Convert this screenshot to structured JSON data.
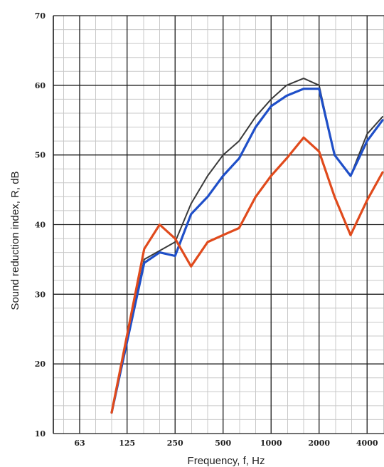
{
  "chart_data": {
    "type": "line",
    "xlabel": "Frequency, f, Hz",
    "ylabel": "Sound reduction index, R, dB",
    "x_scale": "log",
    "ylim": [
      10,
      70
    ],
    "y_ticks": [
      10,
      20,
      30,
      40,
      50,
      60,
      70
    ],
    "x_ticks": [
      "63",
      "125",
      "250",
      "500",
      "1000",
      "2000",
      "4000"
    ],
    "x_tick_values": [
      63,
      125,
      250,
      500,
      1000,
      2000,
      4000
    ],
    "grid": true,
    "legend": "none",
    "series": [
      {
        "color": "#3a3a3a",
        "x": [
          100,
          160,
          250,
          315,
          400,
          500,
          630,
          800,
          1000,
          1250,
          1600,
          2000,
          2500,
          3150,
          4000,
          5000
        ],
        "y": [
          13,
          35,
          37.5,
          43,
          47,
          50,
          52,
          55.5,
          58,
          60,
          61,
          60,
          50,
          47,
          53,
          55.5
        ]
      },
      {
        "color": "#1f4fc8",
        "x": [
          100,
          160,
          200,
          250,
          315,
          400,
          500,
          630,
          800,
          1000,
          1250,
          1600,
          2000,
          2500,
          3150,
          4000,
          5000
        ],
        "y": [
          13,
          34.5,
          36,
          35.5,
          41.5,
          44,
          47,
          49.5,
          54,
          57,
          58.5,
          59.5,
          59.5,
          50,
          47,
          52,
          55
        ]
      },
      {
        "color": "#e04a1c",
        "x": [
          100,
          160,
          200,
          250,
          315,
          400,
          500,
          630,
          800,
          1000,
          1250,
          1600,
          2000,
          2500,
          3150,
          4000,
          5000
        ],
        "y": [
          13,
          36.5,
          40,
          38,
          34,
          37.5,
          38.5,
          39.5,
          44,
          47,
          49.5,
          52.5,
          50.5,
          44,
          38.5,
          43.5,
          47.5
        ]
      }
    ]
  }
}
